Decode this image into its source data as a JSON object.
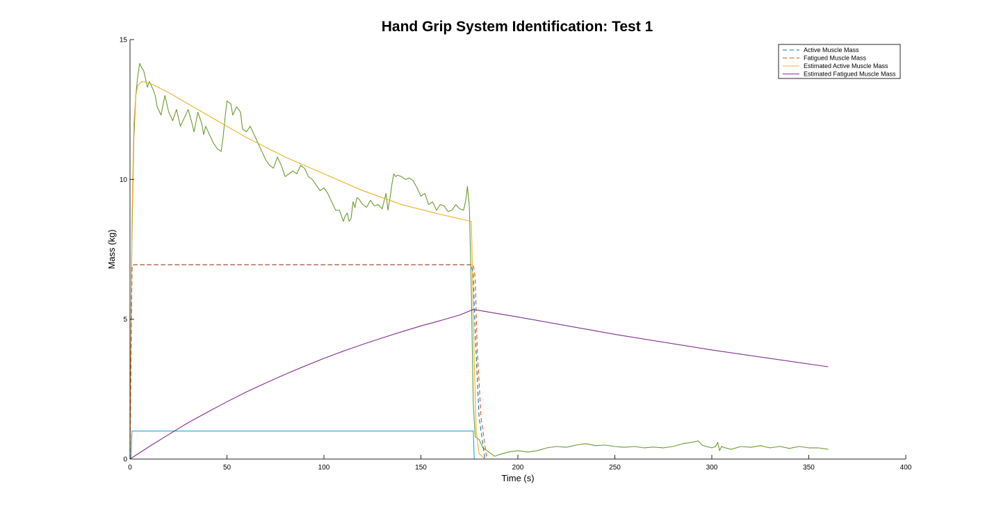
{
  "chart_data": {
    "type": "line",
    "title": "Hand Grip System Identification: Test 1",
    "xlabel": "Time (s)",
    "ylabel": "Mass (kg)",
    "xlim": [
      0,
      400
    ],
    "ylim": [
      0,
      15
    ],
    "xticks": [
      0,
      50,
      100,
      150,
      200,
      250,
      300,
      350,
      400
    ],
    "yticks": [
      0,
      5,
      10,
      15
    ],
    "grid": false,
    "legend_position": "top-right",
    "legend": [
      {
        "name": "Active Muscle Mass",
        "color": "#0072BD",
        "style": "dashed"
      },
      {
        "name": "Fatigued Muscle Mass",
        "color": "#D95319",
        "style": "dashed"
      },
      {
        "name": "Estimated Active Muscle Mass",
        "color": "#EDB120",
        "style": "solid"
      },
      {
        "name": "Estimated Fatigued Muscle Mass",
        "color": "#7E2F8E",
        "style": "solid"
      }
    ],
    "series": [
      {
        "name": "Active Muscle Mass",
        "color": "#0072BD",
        "style": "dashed",
        "x": [
          0,
          1,
          2,
          176,
          177,
          178,
          180,
          183,
          360
        ],
        "y": [
          0,
          6.9,
          6.95,
          6.95,
          6.6,
          4.5,
          1.5,
          0,
          0
        ]
      },
      {
        "name": "Fatigued Muscle Mass",
        "color": "#D95319",
        "style": "dashed",
        "x": [
          0,
          1,
          2,
          177,
          178,
          179,
          181,
          184,
          360
        ],
        "y": [
          0,
          6.8,
          6.95,
          6.95,
          6.5,
          4.0,
          1.5,
          0,
          0
        ]
      },
      {
        "name": "Estimated Active Muscle Mass",
        "color": "#EDB120",
        "style": "solid",
        "x": [
          0,
          1,
          2,
          3,
          4,
          6,
          10,
          20,
          40,
          60,
          80,
          100,
          120,
          140,
          160,
          176,
          176.5,
          177.5,
          178.5,
          180,
          183,
          360
        ],
        "y": [
          0,
          8.5,
          12.0,
          13.0,
          13.35,
          13.5,
          13.45,
          13.1,
          12.3,
          11.5,
          10.8,
          10.2,
          9.6,
          9.1,
          8.75,
          8.5,
          7.0,
          3.5,
          1.0,
          0.2,
          0,
          0
        ]
      },
      {
        "name": "Estimated Fatigued Muscle Mass",
        "color": "#7E2F8E",
        "style": "solid",
        "x": [
          0,
          10,
          20,
          30,
          40,
          50,
          60,
          70,
          80,
          90,
          100,
          110,
          120,
          130,
          140,
          150,
          160,
          170,
          177,
          200,
          250,
          300,
          360
        ],
        "y": [
          0,
          0.45,
          0.88,
          1.3,
          1.68,
          2.05,
          2.4,
          2.72,
          3.03,
          3.32,
          3.6,
          3.86,
          4.1,
          4.33,
          4.55,
          4.76,
          4.95,
          5.15,
          5.35,
          5.08,
          4.46,
          3.9,
          3.3
        ]
      },
      {
        "name": "",
        "color": "#1FA9C9",
        "style": "solid",
        "x": [
          0,
          0.5,
          1,
          177,
          177.5,
          360
        ],
        "y": [
          0,
          0,
          1.0,
          1.0,
          0,
          0
        ]
      },
      {
        "name": "",
        "color": "#6A9A2C",
        "style": "solid",
        "x": [
          0,
          1,
          2,
          3,
          4,
          5,
          6,
          7,
          8,
          9,
          10,
          12,
          13,
          14,
          16,
          18,
          20,
          22,
          24,
          26,
          28,
          30,
          32,
          33,
          35,
          37,
          38,
          39,
          41,
          43,
          45,
          47,
          48,
          49,
          50,
          52,
          53,
          55,
          57,
          58,
          60,
          62,
          64,
          66,
          68,
          70,
          72,
          74,
          76,
          78,
          80,
          82,
          84,
          86,
          88,
          90,
          92,
          94,
          96,
          98,
          100,
          102,
          104,
          106,
          108,
          110,
          111,
          112,
          113,
          114,
          115,
          116,
          117,
          118,
          120,
          122,
          124,
          126,
          128,
          130,
          132,
          133,
          134,
          135,
          136,
          137,
          138,
          140,
          142,
          144,
          146,
          148,
          150,
          152,
          154,
          156,
          158,
          160,
          162,
          164,
          166,
          168,
          170,
          172,
          173,
          174,
          175,
          176,
          177,
          178,
          180,
          182,
          184,
          186,
          188,
          190,
          195,
          200,
          205,
          210,
          215,
          220,
          225,
          230,
          235,
          240,
          245,
          250,
          255,
          260,
          265,
          270,
          275,
          280,
          285,
          290,
          293,
          295,
          297,
          300,
          302,
          303,
          304,
          305,
          307,
          310,
          315,
          320,
          325,
          330,
          335,
          340,
          345,
          350,
          355,
          360
        ],
        "y": [
          0,
          8.0,
          11.5,
          13.0,
          13.7,
          14.15,
          14.0,
          13.9,
          13.6,
          13.3,
          13.5,
          13.2,
          13.0,
          12.6,
          12.3,
          13.0,
          12.4,
          12.1,
          12.5,
          11.9,
          12.2,
          12.5,
          12.0,
          11.7,
          12.4,
          12.0,
          11.6,
          11.9,
          11.6,
          11.3,
          11.1,
          11.0,
          11.5,
          12.2,
          12.8,
          12.7,
          12.3,
          12.6,
          12.4,
          11.8,
          11.7,
          11.9,
          11.6,
          11.3,
          11.0,
          10.7,
          10.5,
          10.4,
          10.8,
          10.5,
          10.1,
          10.2,
          10.3,
          10.2,
          10.5,
          10.4,
          10.1,
          10.0,
          9.8,
          9.6,
          9.7,
          9.5,
          9.2,
          8.9,
          8.9,
          8.5,
          8.7,
          8.8,
          8.5,
          8.6,
          9.2,
          9.0,
          9.35,
          9.3,
          9.1,
          9.0,
          9.25,
          9.05,
          9.1,
          8.95,
          9.5,
          8.9,
          9.3,
          9.8,
          10.2,
          10.1,
          10.15,
          10.1,
          10.0,
          10.05,
          9.95,
          9.7,
          9.4,
          9.5,
          9.1,
          9.2,
          8.9,
          9.1,
          9.05,
          8.85,
          8.9,
          9.1,
          8.95,
          8.9,
          9.2,
          9.75,
          9.0,
          6.0,
          2.0,
          0.8,
          0.7,
          0.4,
          0.3,
          0.2,
          0.1,
          0.15,
          0.25,
          0.3,
          0.25,
          0.3,
          0.4,
          0.45,
          0.42,
          0.5,
          0.55,
          0.48,
          0.5,
          0.45,
          0.42,
          0.45,
          0.4,
          0.43,
          0.4,
          0.45,
          0.55,
          0.6,
          0.65,
          0.5,
          0.45,
          0.4,
          0.45,
          0.6,
          0.3,
          0.45,
          0.4,
          0.35,
          0.45,
          0.42,
          0.48,
          0.4,
          0.45,
          0.38,
          0.45,
          0.4,
          0.4,
          0.35
        ]
      }
    ]
  }
}
